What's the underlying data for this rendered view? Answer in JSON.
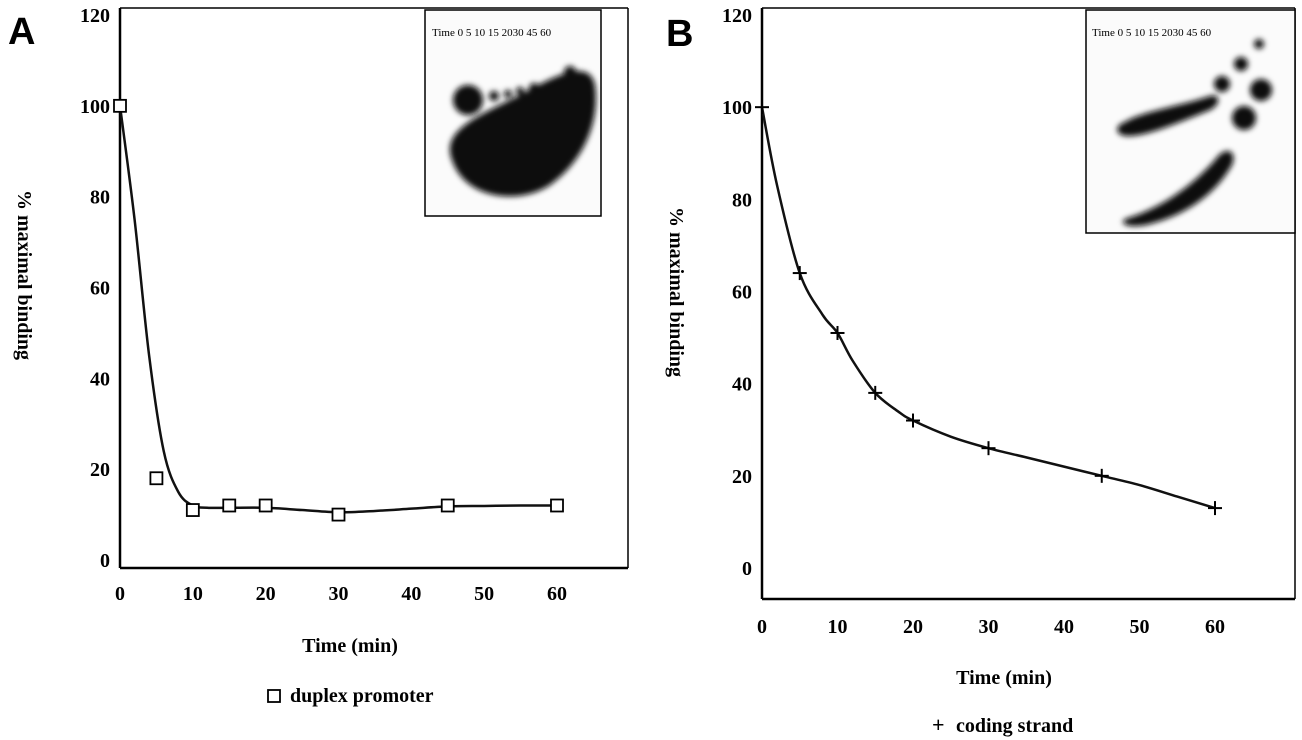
{
  "panels": [
    {
      "letter": "A",
      "inset_header": "Time 0  5  10 15 2030 45 60",
      "legend_symbol": "□",
      "legend_label": "duplex promoter"
    },
    {
      "letter": "B",
      "inset_header": "Time 0   5   10 15 2030 45 60",
      "legend_symbol": "+",
      "legend_label": "coding strand"
    }
  ],
  "chart_data": [
    {
      "type": "scatter",
      "xlabel": "Time (min)",
      "ylabel": "% maximal binding",
      "xlim": [
        0,
        70
      ],
      "ylim": [
        0,
        120
      ],
      "x_ticks": [
        "0",
        "10",
        "20",
        "30",
        "40",
        "50",
        "60"
      ],
      "y_ticks": [
        "0",
        "20",
        "40",
        "60",
        "80",
        "100",
        "120"
      ],
      "grid": false,
      "legend_position": "bottom",
      "marker": "square",
      "fit_line": true,
      "series": [
        {
          "name": "duplex promoter",
          "x": [
            0,
            5,
            10,
            15,
            20,
            30,
            45,
            60
          ],
          "y": [
            100,
            18,
            11,
            12,
            12,
            10,
            12,
            12
          ]
        }
      ],
      "fit": {
        "x": [
          0,
          2,
          4,
          6,
          8,
          10,
          12,
          15,
          20,
          25,
          30,
          35,
          40,
          45,
          50,
          55,
          60
        ],
        "y": [
          100,
          75,
          45,
          24,
          15,
          12,
          11.5,
          11.5,
          11.5,
          11,
          10.5,
          10.8,
          11.3,
          11.8,
          11.9,
          12,
          12
        ]
      }
    },
    {
      "type": "scatter",
      "xlabel": "Time (min)",
      "ylabel": "% maximal binding",
      "xlim": [
        0,
        70
      ],
      "ylim": [
        -5,
        120
      ],
      "x_ticks": [
        "0",
        "10",
        "20",
        "30",
        "40",
        "50",
        "60"
      ],
      "y_ticks": [
        "0",
        "20",
        "40",
        "60",
        "80",
        "100",
        "120"
      ],
      "grid": false,
      "legend_position": "bottom",
      "marker": "plus",
      "fit_line": true,
      "series": [
        {
          "name": "coding strand",
          "x": [
            0,
            5,
            10,
            15,
            20,
            30,
            45,
            60
          ],
          "y": [
            100,
            64,
            51,
            38,
            32,
            26,
            20,
            13
          ]
        }
      ],
      "fit": {
        "x": [
          0,
          2,
          5,
          8,
          10,
          12,
          15,
          18,
          20,
          25,
          30,
          35,
          40,
          45,
          50,
          55,
          60
        ],
        "y": [
          100,
          83,
          64,
          55,
          51,
          45,
          38,
          34,
          32,
          28.5,
          26,
          24,
          22,
          20,
          18,
          15.5,
          13
        ]
      }
    }
  ]
}
